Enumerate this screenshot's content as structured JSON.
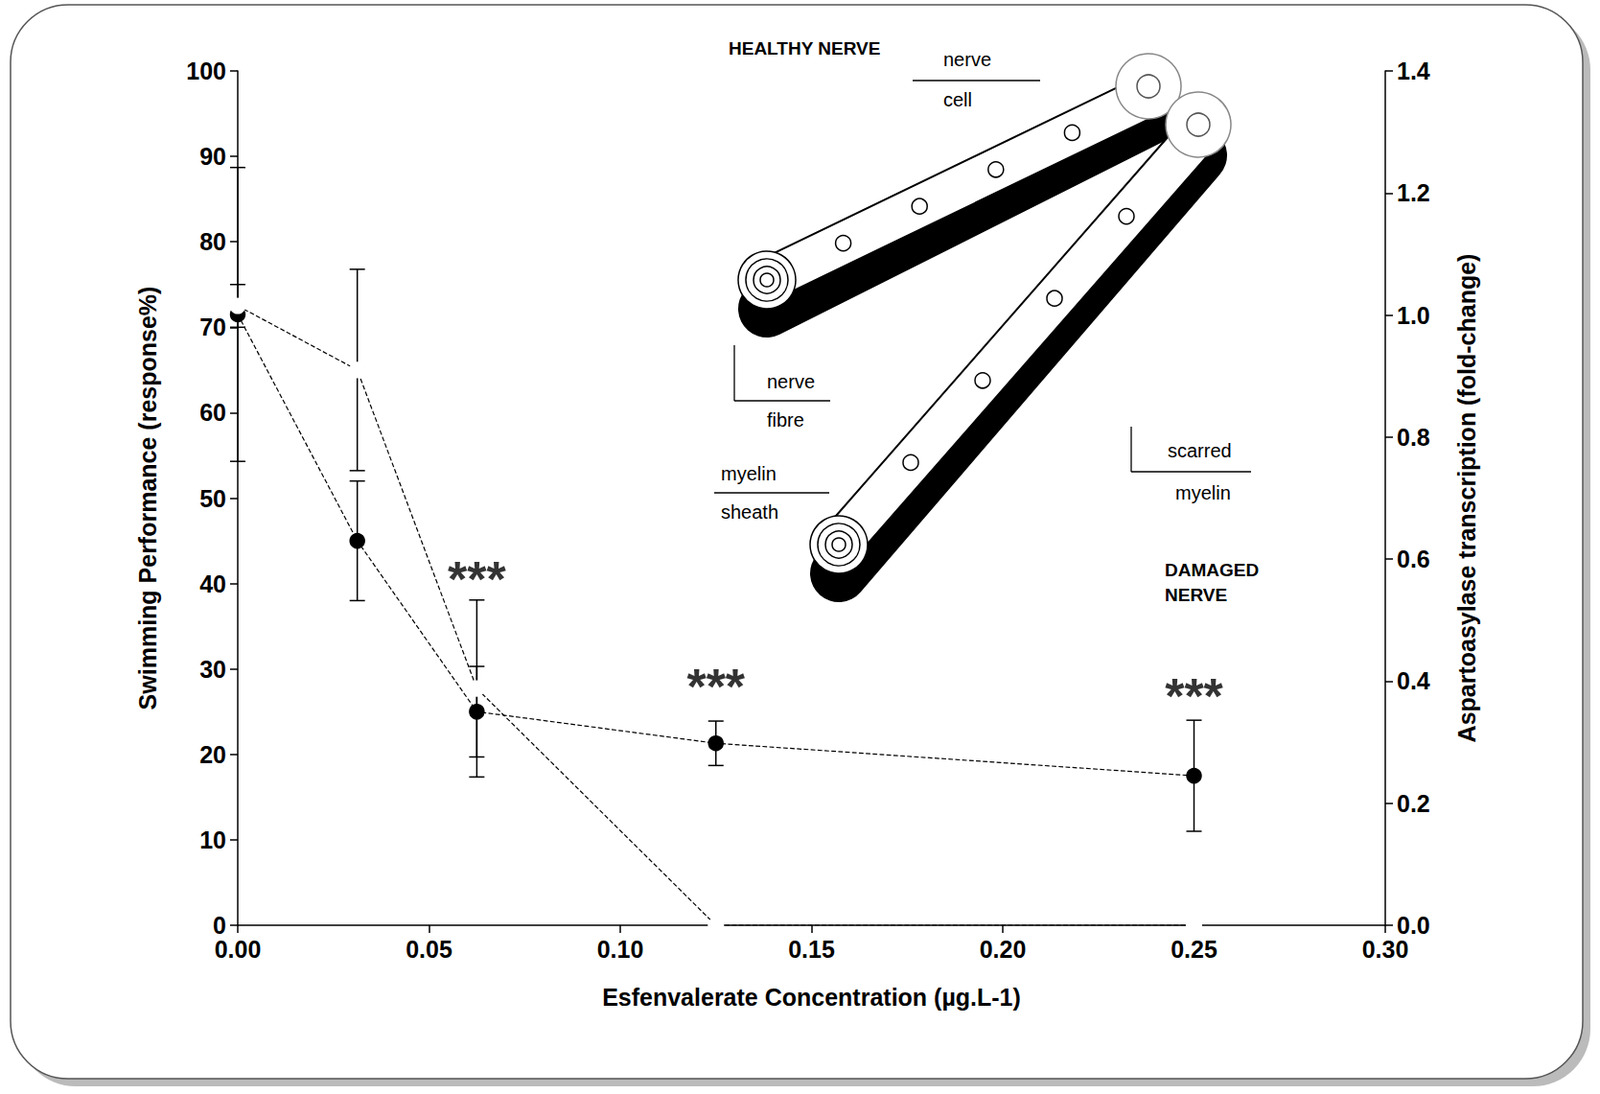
{
  "chart_data": {
    "type": "line",
    "xlabel": "Esfenvalerate Concentration (µg.L-1)",
    "ylabel": "Swimming Performance (response%)",
    "y2label": "Aspartoasylase transcription (fold-change)",
    "x": [
      0,
      0.03125,
      0.0625,
      0.125,
      0.25
    ],
    "series": [
      {
        "color": "#000000",
        "marker": "circle",
        "line_style": "dashed",
        "values": [
          71.5,
          45,
          25,
          21.3,
          17.5
        ],
        "errors": [
          17.2,
          7,
          5.3,
          2.6,
          6.5
        ]
      },
      {
        "color": "#000000",
        "marker": "emptyCircle",
        "line_style": "dashed",
        "axis": "y2",
        "values": [
          1.015,
          0.91,
          0.388,
          0,
          0
        ],
        "errors": [
          0.035,
          0.165,
          0.145,
          0,
          0
        ]
      }
    ],
    "xlim": [
      0,
      0.3
    ],
    "xticks": [
      {
        "value": 0,
        "label": "0.00"
      },
      0.05,
      {
        "value": 0.1,
        "label": "0.10"
      },
      0.15,
      {
        "value": 0.2,
        "label": "0.20"
      },
      0.25,
      {
        "value": 0.3,
        "label": "0.30"
      }
    ],
    "ylim": [
      0,
      100
    ],
    "yticks": [
      0,
      10,
      20,
      30,
      40,
      50,
      60,
      70,
      80,
      90,
      100
    ],
    "y2lim": [
      0,
      1.4
    ],
    "y2ticks": [
      {
        "value": 0,
        "label": "0.0"
      },
      0.2,
      0.4,
      0.6,
      0.8,
      {
        "value": 1,
        "label": "1.0"
      },
      1.2,
      1.4
    ],
    "grid": false,
    "annotations": [
      {
        "text": "***",
        "x": 0.0625,
        "y": 40.5
      },
      {
        "text": "***",
        "x": 0.125,
        "y": 28
      },
      {
        "text": "***",
        "x": 0.25,
        "y": 26.8
      }
    ],
    "inset": {
      "healthy_title": "HEALTHY NERVE",
      "damaged_title": "DAMAGED NERVE",
      "callouts": [
        {
          "top": "nerve",
          "bottom": "cell"
        },
        {
          "top": "nerve",
          "bottom": "fibre"
        },
        {
          "top": "myelin",
          "bottom": "sheath"
        },
        {
          "top": "scarred",
          "bottom": "myelin"
        }
      ]
    }
  }
}
